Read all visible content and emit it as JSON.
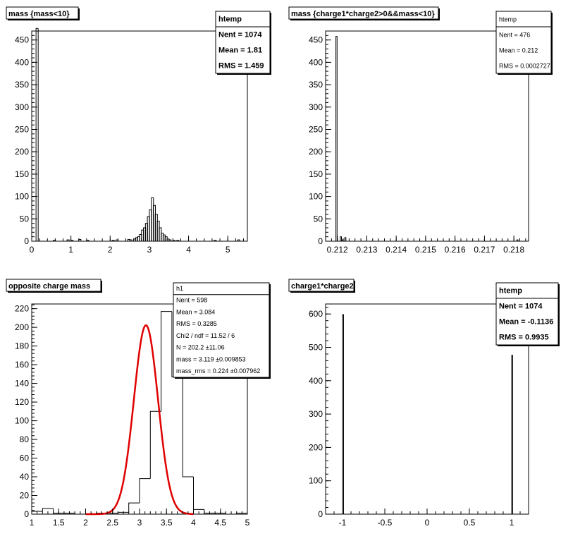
{
  "chart_data": [
    {
      "type": "bar",
      "title": "mass {mass<10}",
      "xlim": [
        0,
        5.5
      ],
      "ylim": [
        0,
        470
      ],
      "xticks": [
        "0",
        "1",
        "2",
        "3",
        "4",
        "5"
      ],
      "xtick_values": [
        0,
        1,
        2,
        3,
        4,
        5
      ],
      "yticks": [
        "0",
        "50",
        "100",
        "150",
        "200",
        "250",
        "300",
        "350",
        "400",
        "450"
      ],
      "ytick_values": [
        0,
        50,
        100,
        150,
        200,
        250,
        300,
        350,
        400,
        450
      ],
      "bin_start": 0,
      "bin_width": 0.055,
      "values": [
        0,
        0,
        476,
        0,
        0,
        0,
        0,
        0,
        0,
        0,
        0,
        0,
        0,
        0,
        0,
        0,
        0,
        0,
        0,
        0,
        0,
        0,
        0,
        0,
        0,
        0,
        0,
        0,
        0,
        0,
        0,
        0,
        0,
        0,
        0,
        0,
        0,
        0,
        0,
        0,
        0,
        0,
        0,
        0,
        0,
        0,
        0,
        0,
        0,
        0,
        0,
        0,
        0,
        0,
        0,
        0,
        0,
        0,
        0,
        0,
        0,
        0,
        0,
        0,
        0,
        0,
        0,
        0,
        0,
        0,
        0,
        0,
        0,
        0,
        0,
        0,
        0,
        0,
        0,
        0,
        0,
        0,
        0,
        0,
        0,
        0,
        0,
        0,
        0,
        0,
        0,
        0,
        0,
        0,
        0,
        0,
        0,
        0,
        0,
        0,
        0,
        0,
        0,
        0,
        0,
        0,
        0,
        0,
        0,
        0,
        0,
        0,
        0,
        0,
        0,
        0,
        0,
        0,
        0,
        0,
        0,
        0,
        0,
        0,
        0,
        0,
        0,
        0,
        0,
        0,
        0,
        0,
        0,
        0,
        0,
        0,
        0,
        0,
        0,
        0,
        0,
        0,
        0,
        0,
        0,
        0,
        0,
        0,
        0,
        0
      ],
      "sparse": [
        [
          0.55,
          2
        ],
        [
          0.9,
          3
        ],
        [
          1.0,
          2
        ],
        [
          1.2,
          4
        ],
        [
          1.4,
          2
        ],
        [
          2.05,
          2
        ],
        [
          2.15,
          3
        ],
        [
          2.45,
          4
        ],
        [
          2.5,
          3
        ],
        [
          2.6,
          5
        ],
        [
          2.65,
          8
        ],
        [
          2.7,
          10
        ],
        [
          2.75,
          15
        ],
        [
          2.8,
          25
        ],
        [
          2.85,
          30
        ],
        [
          2.9,
          40
        ],
        [
          2.95,
          55
        ],
        [
          3.0,
          70
        ],
        [
          3.05,
          97
        ],
        [
          3.1,
          80
        ],
        [
          3.15,
          60
        ],
        [
          3.2,
          45
        ],
        [
          3.25,
          30
        ],
        [
          3.3,
          18
        ],
        [
          3.35,
          14
        ],
        [
          3.4,
          10
        ],
        [
          3.45,
          5
        ],
        [
          3.5,
          3
        ],
        [
          3.6,
          2
        ],
        [
          3.7,
          2
        ],
        [
          4.65,
          2
        ],
        [
          5.25,
          3
        ]
      ],
      "stats": {
        "name": "htemp",
        "entries": [
          {
            "label": "Nent = 1074"
          },
          {
            "label": "Mean =   1.81"
          },
          {
            "label": "RMS   =  1.459"
          }
        ]
      }
    },
    {
      "type": "bar",
      "title": "mass {charge1*charge2>0&&mass<10}",
      "xlim": [
        0.2116,
        0.2185
      ],
      "ylim": [
        0,
        470
      ],
      "xticks": [
        "0.212",
        "0.213",
        "0.214",
        "0.215",
        "0.216",
        "0.217",
        "0.218"
      ],
      "xtick_values": [
        0.212,
        0.213,
        0.214,
        0.215,
        0.216,
        0.217,
        0.218
      ],
      "yticks": [
        "0",
        "50",
        "100",
        "150",
        "200",
        "250",
        "300",
        "350",
        "400",
        "450"
      ],
      "ytick_values": [
        0,
        50,
        100,
        150,
        200,
        250,
        300,
        350,
        400,
        450
      ],
      "sparse": [
        [
          0.21195,
          458
        ],
        [
          0.2121,
          10
        ],
        [
          0.21215,
          3
        ],
        [
          0.21225,
          8
        ],
        [
          0.2181,
          3
        ]
      ],
      "bin_width": 4e-05,
      "stats": {
        "name": "htemp",
        "entries": [
          {
            "label": "Nent = 476"
          },
          {
            "label": "Mean  = 0.212"
          },
          {
            "label": "RMS   = 0.0002727"
          }
        ]
      }
    },
    {
      "type": "bar",
      "title": "opposite charge mass",
      "xlim": [
        1,
        5
      ],
      "ylim": [
        0,
        225
      ],
      "xticks": [
        "1",
        "1.5",
        "2",
        "2.5",
        "3",
        "3.5",
        "4",
        "4.5",
        "5"
      ],
      "xtick_values": [
        1,
        1.5,
        2,
        2.5,
        3,
        3.5,
        4,
        4.5,
        5
      ],
      "yticks": [
        "0",
        "20",
        "40",
        "60",
        "80",
        "100",
        "120",
        "140",
        "160",
        "180",
        "200",
        "220"
      ],
      "ytick_values": [
        0,
        20,
        40,
        60,
        80,
        100,
        120,
        140,
        160,
        180,
        200,
        220
      ],
      "bin_start": 1,
      "bin_width": 0.2,
      "values": [
        3,
        6,
        1,
        1,
        0,
        0,
        1,
        1,
        2,
        12,
        38,
        110,
        217,
        147,
        40,
        5,
        1,
        1,
        0,
        1
      ],
      "fit": {
        "type": "gaussian",
        "N": 202.2,
        "mean": 3.119,
        "sigma": 0.224,
        "x_range": [
          2.0,
          4.0
        ]
      },
      "stats": {
        "name": "h1",
        "entries": [
          {
            "label": "Nent = 598"
          },
          {
            "label": "Mean  = 3.084"
          },
          {
            "label": "RMS   = 0.3285"
          },
          {
            "label": "Chi2 / ndf = 11.52 / 6"
          },
          {
            "label": "N        = 202.2   ±11.06"
          },
          {
            "label": "mass      = 3.119   ±0.009853"
          },
          {
            "label": "mass_rms = 0.224   ±0.007962"
          }
        ]
      }
    },
    {
      "type": "bar",
      "title": "charge1*charge2",
      "xlim": [
        -1.2,
        1.2
      ],
      "ylim": [
        0,
        630
      ],
      "xticks": [
        "-1",
        "-0.5",
        "0",
        "0.5",
        "1"
      ],
      "xtick_values": [
        -1,
        -0.5,
        0,
        0.5,
        1
      ],
      "yticks": [
        "0",
        "100",
        "200",
        "300",
        "400",
        "500",
        "600"
      ],
      "ytick_values": [
        0,
        100,
        200,
        300,
        400,
        500,
        600
      ],
      "sparse": [
        [
          -1,
          598
        ],
        [
          1,
          476
        ]
      ],
      "bin_width": 0.012,
      "stats": {
        "name": "htemp",
        "entries": [
          {
            "label": "Nent = 1074"
          },
          {
            "label": "Mean   = -0.1136"
          },
          {
            "label": "RMS    = 0.9935"
          }
        ]
      }
    }
  ],
  "colors": {
    "hist_line": "#000000",
    "fit_line": "#e00000",
    "background": "#ffffff"
  }
}
